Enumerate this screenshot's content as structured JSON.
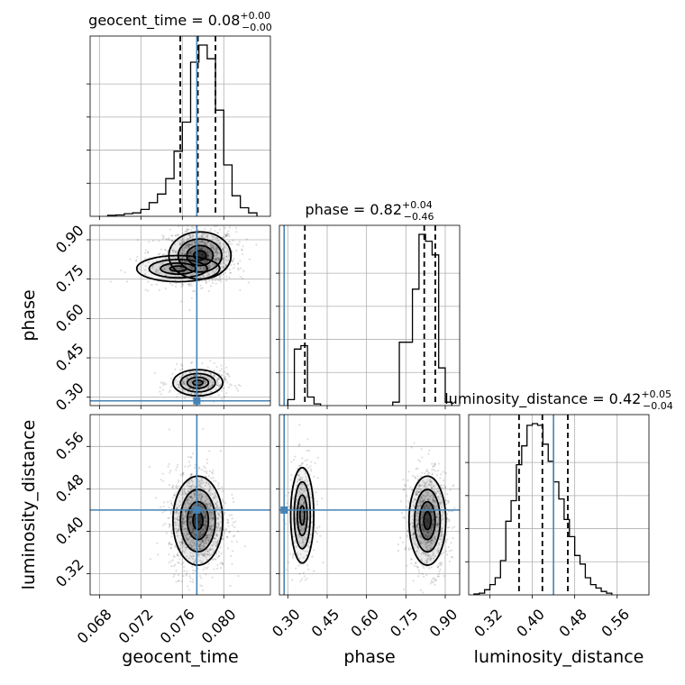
{
  "chart_data": {
    "type": "corner",
    "parameters": [
      "geocent_time",
      "phase",
      "luminosity_distance"
    ],
    "truths": {
      "geocent_time": 0.0774,
      "phase": 0.286,
      "luminosity_distance": 0.44
    },
    "truth_color": "#4682b4",
    "titles": [
      {
        "param": "geocent_time",
        "prefix": "geocent_time = ",
        "median": "0.08",
        "plus": "+0.00",
        "minus": "−0.00"
      },
      {
        "param": "phase",
        "prefix": "phase = ",
        "median": "0.82",
        "plus": "+0.04",
        "minus": "−0.46"
      },
      {
        "param": "luminosity_distance",
        "prefix": "luminosity_distance = ",
        "median": "0.42",
        "plus": "+0.05",
        "minus": "−0.04"
      }
    ],
    "axes": {
      "geocent_time": {
        "range": [
          0.0671,
          0.0845
        ],
        "ticks": [
          0.068,
          0.072,
          0.076,
          0.08
        ],
        "tick_labels": [
          "0.068",
          "0.072",
          "0.076",
          "0.080"
        ]
      },
      "phase": {
        "range": [
          0.268,
          0.955
        ],
        "ticks": [
          0.3,
          0.45,
          0.6,
          0.75,
          0.9
        ],
        "tick_labels": [
          "0.30",
          "0.45",
          "0.60",
          "0.75",
          "0.90"
        ]
      },
      "luminosity_distance": {
        "range": [
          0.28,
          0.62
        ],
        "ticks": [
          0.32,
          0.4,
          0.48,
          0.56
        ],
        "tick_labels": [
          "0.32",
          "0.40",
          "0.48",
          "0.56"
        ]
      }
    },
    "histograms": {
      "geocent_time": {
        "quantiles": [
          0.0758,
          0.0775,
          0.0792
        ],
        "bins": [
          [
            0.0688,
            0.0696,
            0.006
          ],
          [
            0.0696,
            0.0704,
            0.008
          ],
          [
            0.0704,
            0.0712,
            0.015
          ],
          [
            0.0712,
            0.072,
            0.02
          ],
          [
            0.072,
            0.0728,
            0.04
          ],
          [
            0.0728,
            0.0736,
            0.08
          ],
          [
            0.0736,
            0.0744,
            0.13
          ],
          [
            0.0744,
            0.0752,
            0.22
          ],
          [
            0.0752,
            0.076,
            0.38
          ],
          [
            0.076,
            0.0768,
            0.55
          ],
          [
            0.0768,
            0.0776,
            0.9
          ],
          [
            0.0776,
            0.0784,
            1.0
          ],
          [
            0.0784,
            0.0792,
            0.92
          ],
          [
            0.0792,
            0.08,
            0.62
          ],
          [
            0.08,
            0.0808,
            0.3
          ],
          [
            0.0808,
            0.0816,
            0.12
          ],
          [
            0.0816,
            0.0824,
            0.05
          ],
          [
            0.0824,
            0.0832,
            0.02
          ]
        ]
      },
      "phase": {
        "quantiles": [
          0.365,
          0.82,
          0.862
        ],
        "bins": [
          [
            0.3,
            0.325,
            0.035
          ],
          [
            0.325,
            0.35,
            0.33
          ],
          [
            0.35,
            0.375,
            0.35
          ],
          [
            0.375,
            0.4,
            0.05
          ],
          [
            0.4,
            0.425,
            0.01
          ],
          [
            0.7,
            0.725,
            0.02
          ],
          [
            0.725,
            0.75,
            0.37
          ],
          [
            0.75,
            0.775,
            0.37
          ],
          [
            0.775,
            0.8,
            0.68
          ],
          [
            0.8,
            0.825,
            1.0
          ],
          [
            0.825,
            0.85,
            0.96
          ],
          [
            0.85,
            0.875,
            0.88
          ],
          [
            0.875,
            0.9,
            0.22
          ],
          [
            0.9,
            0.925,
            0.02
          ]
        ]
      },
      "luminosity_distance": {
        "quantiles": [
          0.375,
          0.419,
          0.467
        ],
        "bins": [
          [
            0.29,
            0.3,
            0.005
          ],
          [
            0.3,
            0.31,
            0.01
          ],
          [
            0.31,
            0.32,
            0.03
          ],
          [
            0.32,
            0.33,
            0.06
          ],
          [
            0.33,
            0.34,
            0.1
          ],
          [
            0.34,
            0.35,
            0.2
          ],
          [
            0.35,
            0.36,
            0.43
          ],
          [
            0.36,
            0.37,
            0.55
          ],
          [
            0.37,
            0.38,
            0.76
          ],
          [
            0.38,
            0.39,
            0.87
          ],
          [
            0.39,
            0.4,
            0.99
          ],
          [
            0.4,
            0.41,
            1.0
          ],
          [
            0.41,
            0.42,
            0.99
          ],
          [
            0.42,
            0.43,
            0.88
          ],
          [
            0.43,
            0.44,
            0.78
          ],
          [
            0.44,
            0.45,
            0.66
          ],
          [
            0.45,
            0.46,
            0.56
          ],
          [
            0.46,
            0.47,
            0.44
          ],
          [
            0.47,
            0.48,
            0.34
          ],
          [
            0.48,
            0.49,
            0.23
          ],
          [
            0.49,
            0.5,
            0.18
          ],
          [
            0.5,
            0.51,
            0.1
          ],
          [
            0.51,
            0.52,
            0.06
          ],
          [
            0.52,
            0.53,
            0.04
          ],
          [
            0.53,
            0.54,
            0.02
          ],
          [
            0.54,
            0.55,
            0.01
          ]
        ]
      }
    },
    "joint_density_modes": {
      "phase_vs_geocent_time": [
        {
          "x": 0.0777,
          "y": 0.84,
          "sx": 0.0015,
          "sy": 0.045,
          "w": 0.78
        },
        {
          "x": 0.0756,
          "y": 0.79,
          "sx": 0.002,
          "sy": 0.025,
          "w": 0.12
        },
        {
          "x": 0.0775,
          "y": 0.355,
          "sx": 0.0012,
          "sy": 0.025,
          "w": 0.3
        }
      ],
      "luminosity_distance_vs_geocent_time": [
        {
          "x": 0.0775,
          "y": 0.42,
          "sx": 0.0012,
          "sy": 0.042,
          "w": 1.0
        }
      ],
      "luminosity_distance_vs_phase": [
        {
          "x": 0.355,
          "y": 0.43,
          "sx": 0.022,
          "sy": 0.045,
          "w": 0.33
        },
        {
          "x": 0.832,
          "y": 0.42,
          "sx": 0.035,
          "sy": 0.042,
          "w": 0.67
        }
      ]
    }
  }
}
